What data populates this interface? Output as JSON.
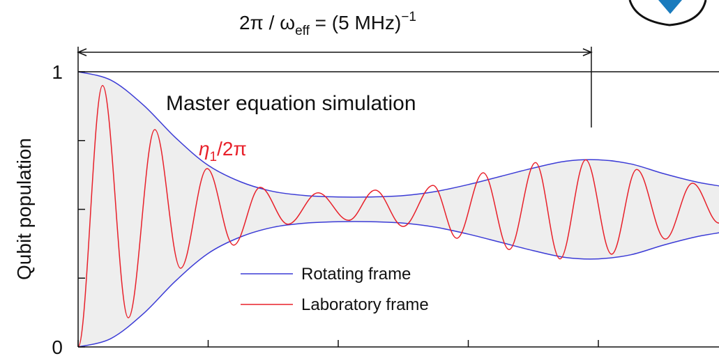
{
  "chart_data": {
    "type": "envelope-line",
    "title": {
      "main": "2π / ω",
      "sub": "eff",
      "mid": " = (5 MHz)",
      "sup": "−1"
    },
    "ylabel": "Qubit population",
    "annotation": "Master equation simulation",
    "rate_label": {
      "main": "η",
      "sub": "1",
      "rest": "/2π",
      "color": "#e8202a"
    },
    "period_span": [
      0,
      3.946
    ],
    "xlim": [
      0,
      4.93
    ],
    "xticks": [
      0,
      1,
      2,
      3,
      4
    ],
    "ylim": [
      0,
      1
    ],
    "yticks": [
      0,
      1
    ],
    "yminor_ticks": [
      0.25,
      0.5,
      0.75
    ],
    "fill_between": {
      "color": "#eeeeee"
    },
    "series": [
      {
        "name": "Rotating frame",
        "color": "#3b3bd6",
        "x": [
          0,
          0.25,
          0.5,
          0.75,
          1,
          1.25,
          1.5,
          1.75,
          2,
          2.25,
          2.5,
          2.75,
          3,
          3.25,
          3.5,
          3.75,
          4,
          4.25,
          4.5,
          4.75,
          4.93
        ],
        "upper": [
          1,
          0.97,
          0.88,
          0.76,
          0.66,
          0.6,
          0.565,
          0.55,
          0.545,
          0.545,
          0.55,
          0.565,
          0.59,
          0.62,
          0.65,
          0.675,
          0.68,
          0.665,
          0.63,
          0.6,
          0.585
        ],
        "lower": [
          0,
          0.03,
          0.12,
          0.24,
          0.34,
          0.4,
          0.435,
          0.45,
          0.455,
          0.455,
          0.45,
          0.435,
          0.41,
          0.38,
          0.35,
          0.325,
          0.32,
          0.335,
          0.37,
          0.4,
          0.415
        ]
      },
      {
        "name": "Laboratory frame",
        "color": "#e8202a",
        "x": [
          0,
          0.188,
          0.386,
          0.59,
          0.788,
          0.992,
          1.196,
          1.4,
          1.614,
          1.845,
          2.08,
          2.284,
          2.499,
          2.729,
          2.912,
          3.115,
          3.314,
          3.517,
          3.705,
          3.903,
          4.102,
          4.295,
          4.515,
          4.724,
          4.928
        ],
        "values": [
          0,
          0.95,
          0.106,
          0.79,
          0.286,
          0.648,
          0.37,
          0.58,
          0.446,
          0.56,
          0.46,
          0.57,
          0.438,
          0.587,
          0.395,
          0.633,
          0.354,
          0.67,
          0.32,
          0.68,
          0.337,
          0.645,
          0.392,
          0.595,
          0.45
        ]
      }
    ]
  }
}
